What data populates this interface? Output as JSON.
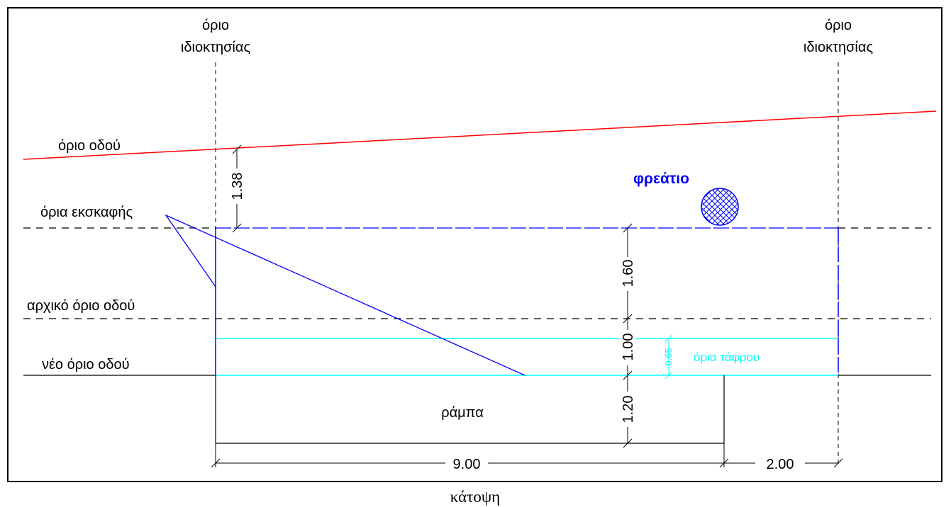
{
  "labels": {
    "property_limit_left_line1": "όριο",
    "property_limit_left_line2": "ιδιοκτησίας",
    "property_limit_right_line1": "όριο",
    "property_limit_right_line2": "ιδιοκτησίας",
    "road_limit": "όριο οδού",
    "excavation_limits": "όρια εκσκαφής",
    "original_road_limit": "αρχικό όριο οδού",
    "new_road_limit": "νέο όριο οδού",
    "manhole": "φρεάτιο",
    "trench_limits": "όρια τάφρου",
    "ramp": "ράμπα"
  },
  "dimensions": {
    "road_offset": "1.38",
    "excavation_to_original": "1.60",
    "original_to_new": "1.00",
    "new_to_ramp_end": "1.20",
    "trench_width": "0.65",
    "ramp_length": "9.00",
    "ramp_to_boundary": "2.00"
  },
  "caption": "κάτοψη",
  "colors": {
    "road_limit": "#ff0000",
    "excavation": "#0000ff",
    "trench": "#00ffff",
    "manhole_text": "#0000ff",
    "lines": "#000000"
  }
}
